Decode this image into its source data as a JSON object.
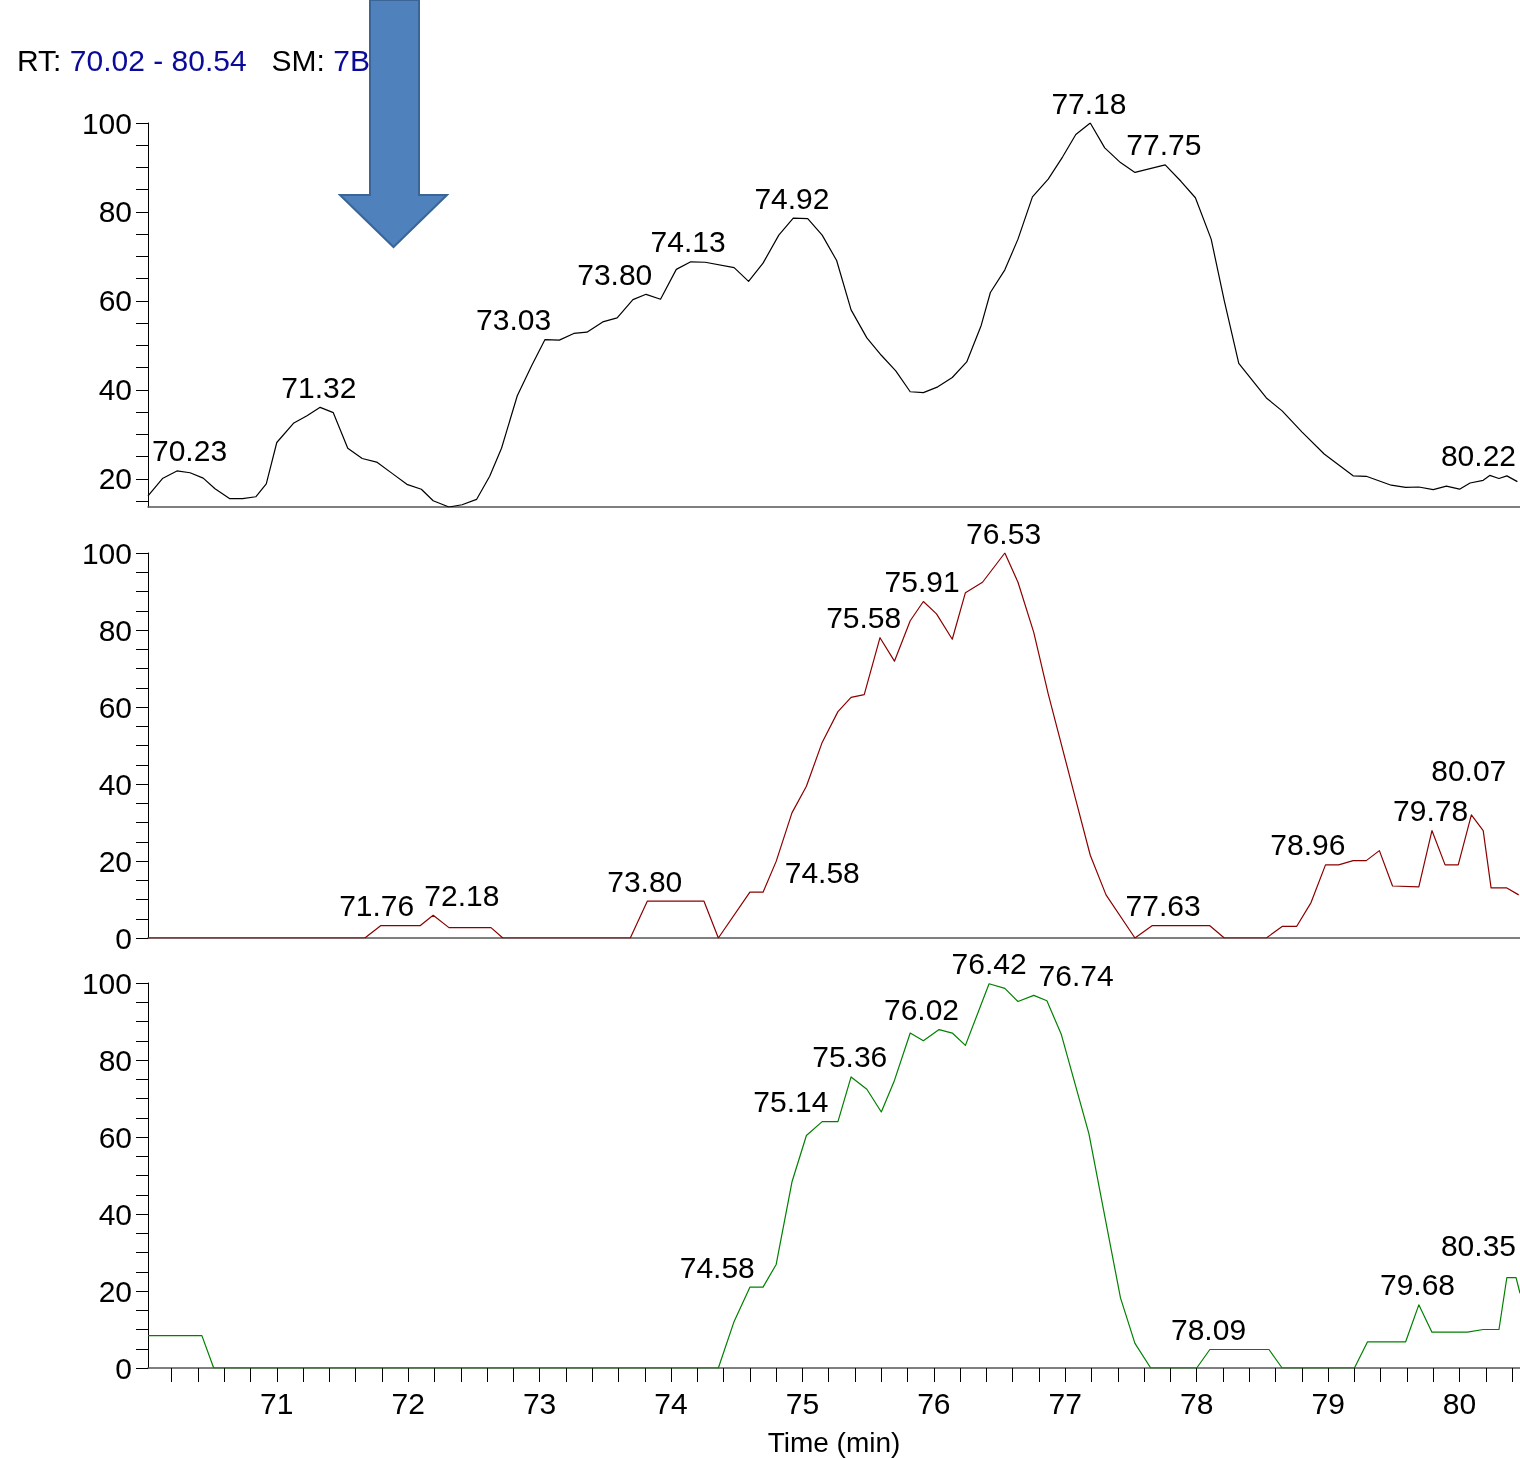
{
  "chart_data": [
    {
      "type": "line",
      "title": "RT: 70.02 - 80.54   SM: 7B",
      "xlim": [
        70.02,
        80.46
      ],
      "ylim": [
        13.7,
        100
      ],
      "tick_labels": "y",
      "yticks": [
        {
          "value": 15,
          "label": null
        },
        20,
        {
          "value": 25,
          "label": null
        },
        {
          "value": 30,
          "label": null
        },
        {
          "value": 35,
          "label": null
        },
        40,
        {
          "value": 45,
          "label": null
        },
        {
          "value": 50,
          "label": null
        },
        {
          "value": 55,
          "label": null
        },
        60,
        {
          "value": 65,
          "label": null
        },
        {
          "value": 70,
          "label": null
        },
        {
          "value": 75,
          "label": null
        },
        80,
        {
          "value": 85,
          "label": null
        },
        {
          "value": 90,
          "label": null
        },
        {
          "value": 95,
          "label": null
        },
        100
      ],
      "series": [
        {
          "color": "#000000",
          "x": [
            70.02,
            70.13,
            70.24,
            70.34,
            70.44,
            70.53,
            70.64,
            70.74,
            70.84,
            70.92,
            71.0,
            71.13,
            71.23,
            71.33,
            71.43,
            71.54,
            71.65,
            71.76,
            71.88,
            71.99,
            72.1,
            72.19,
            72.31,
            72.41,
            72.52,
            72.62,
            72.71,
            72.83,
            72.94,
            73.04,
            73.15,
            73.26,
            73.36,
            73.48,
            73.59,
            73.71,
            73.81,
            73.92,
            74.04,
            74.15,
            74.26,
            74.48,
            74.59,
            74.7,
            74.82,
            74.93,
            75.04,
            75.15,
            75.26,
            75.37,
            75.49,
            75.6,
            75.71,
            75.82,
            75.92,
            76.03,
            76.14,
            76.25,
            76.36,
            76.43,
            76.54,
            76.64,
            76.75,
            76.87,
            76.98,
            77.08,
            77.19,
            77.3,
            77.42,
            77.53,
            77.76,
            77.88,
            77.99,
            78.11,
            78.21,
            78.32,
            78.53,
            78.65,
            78.8,
            78.97,
            79.19,
            79.29,
            79.48,
            79.59,
            79.69,
            79.8,
            79.9,
            80.0,
            80.08,
            80.18,
            80.23,
            80.3,
            80.36,
            80.44
          ],
          "values": [
            16.2,
            20.1,
            21.8,
            21.4,
            20.2,
            17.8,
            15.6,
            15.6,
            16.0,
            18.9,
            28.2,
            32.6,
            34.2,
            36.1,
            34.9,
            26.9,
            24.6,
            23.8,
            21.2,
            18.8,
            17.7,
            15.1,
            13.7,
            14.2,
            15.4,
            20.6,
            26.9,
            38.7,
            45.5,
            51.3,
            51.2,
            52.7,
            53.0,
            55.3,
            56.2,
            60.3,
            61.5,
            60.4,
            67.1,
            68.8,
            68.7,
            67.5,
            64.4,
            68.5,
            74.8,
            78.6,
            78.5,
            74.8,
            69.1,
            58.0,
            51.7,
            47.8,
            44.3,
            39.6,
            39.4,
            40.7,
            42.8,
            46.3,
            54.5,
            61.9,
            67.0,
            73.9,
            83.4,
            87.4,
            92.4,
            97.4,
            100,
            94.4,
            91.1,
            88.9,
            90.6,
            86.9,
            83.2,
            73.9,
            60.0,
            46.0,
            38.2,
            35.3,
            30.6,
            25.6,
            20.7,
            20.6,
            18.6,
            18.1,
            18.2,
            17.6,
            18.4,
            17.7,
            19.1,
            19.7,
            20.8,
            20.1,
            20.7,
            19.4
          ]
        }
      ],
      "annotations": [
        {
          "text": "70.23",
          "x": 70.23,
          "y": 21.8
        },
        {
          "text": "71.32",
          "x": 71.32,
          "y": 36.1
        },
        {
          "text": "73.03",
          "x": 73.03,
          "y": 51.3
        },
        {
          "text": "73.80",
          "x": 73.8,
          "y": 61.5
        },
        {
          "text": "74.13",
          "x": 74.13,
          "y": 68.8
        },
        {
          "text": "74.92",
          "x": 74.92,
          "y": 78.6
        },
        {
          "text": "77.18",
          "x": 77.18,
          "y": 100
        },
        {
          "text": "77.75",
          "x": 77.75,
          "y": 90.6
        },
        {
          "text": "80.22",
          "x": 80.22,
          "y": 20.8
        }
      ]
    },
    {
      "type": "line",
      "xlim": [
        70.02,
        80.46
      ],
      "ylim": [
        0,
        100
      ],
      "tick_labels": "y",
      "yticks": [
        0,
        {
          "value": 5,
          "label": null
        },
        {
          "value": 10,
          "label": null
        },
        {
          "value": 15,
          "label": null
        },
        20,
        {
          "value": 25,
          "label": null
        },
        {
          "value": 30,
          "label": null
        },
        {
          "value": 35,
          "label": null
        },
        40,
        {
          "value": 45,
          "label": null
        },
        {
          "value": 50,
          "label": null
        },
        {
          "value": 55,
          "label": null
        },
        60,
        {
          "value": 65,
          "label": null
        },
        {
          "value": 70,
          "label": null
        },
        {
          "value": 75,
          "label": null
        },
        80,
        {
          "value": 85,
          "label": null
        },
        {
          "value": 90,
          "label": null
        },
        {
          "value": 95,
          "label": null
        },
        100
      ],
      "series": [
        {
          "color": "#8b0000",
          "x": [
            70.02,
            71.67,
            71.79,
            72.09,
            72.19,
            72.31,
            72.63,
            72.72,
            73.69,
            73.82,
            74.25,
            74.36,
            74.6,
            74.7,
            74.8,
            74.92,
            75.03,
            75.15,
            75.27,
            75.37,
            75.47,
            75.59,
            75.7,
            75.82,
            75.92,
            76.02,
            76.14,
            76.24,
            76.37,
            76.54,
            76.64,
            76.76,
            76.87,
            77.08,
            77.19,
            77.31,
            77.53,
            77.66,
            78.1,
            78.21,
            78.53,
            78.65,
            78.76,
            78.87,
            78.98,
            79.08,
            79.19,
            79.29,
            79.39,
            79.49,
            79.69,
            79.79,
            79.89,
            79.99,
            80.09,
            80.18,
            80.24,
            80.36,
            80.45
          ],
          "values": [
            0,
            0,
            3.2,
            3.2,
            5.9,
            2.7,
            2.7,
            0,
            0,
            9.6,
            9.6,
            0,
            11.9,
            11.9,
            19.9,
            32.5,
            39.4,
            50.8,
            58.8,
            62.5,
            63.2,
            78.0,
            71.9,
            82.4,
            87.4,
            84.2,
            77.6,
            89.7,
            92.4,
            100,
            92.4,
            79.4,
            63.4,
            35.9,
            21.5,
            11.2,
            0,
            3.2,
            3.2,
            0,
            0,
            3.0,
            3.0,
            9.2,
            19.0,
            19.0,
            20.1,
            20.1,
            22.7,
            13.5,
            13.3,
            27.9,
            19.0,
            19.0,
            32.0,
            27.9,
            13.0,
            13.0,
            11.2
          ]
        }
      ],
      "annotations": [
        {
          "text": "71.76",
          "x": 71.76,
          "y": 3.2
        },
        {
          "text": "72.18",
          "x": 72.18,
          "y": 5.9
        },
        {
          "text": "73.80",
          "x": 73.8,
          "y": 9.6
        },
        {
          "text": "74.58",
          "x": 74.58,
          "y": 11.9
        },
        {
          "text": "75.58",
          "x": 75.58,
          "y": 78.0
        },
        {
          "text": "75.91",
          "x": 75.91,
          "y": 87.4
        },
        {
          "text": "76.53",
          "x": 76.53,
          "y": 100
        },
        {
          "text": "77.63",
          "x": 77.63,
          "y": 3.2
        },
        {
          "text": "78.96",
          "x": 78.96,
          "y": 19.0
        },
        {
          "text": "79.78",
          "x": 79.78,
          "y": 27.9
        },
        {
          "text": "80.07",
          "x": 80.07,
          "y": 32.0
        }
      ]
    },
    {
      "type": "line",
      "xlabel": "Time (min)",
      "xlim": [
        70.02,
        80.46
      ],
      "ylim": [
        0,
        100
      ],
      "xticks": [
        {
          "value": 70.2,
          "label": null
        },
        {
          "value": 70.4,
          "label": null
        },
        {
          "value": 70.6,
          "label": null
        },
        {
          "value": 70.8,
          "label": null
        },
        71,
        {
          "value": 71.2,
          "label": null
        },
        {
          "value": 71.4,
          "label": null
        },
        {
          "value": 71.6,
          "label": null
        },
        {
          "value": 71.8,
          "label": null
        },
        72,
        {
          "value": 72.2,
          "label": null
        },
        {
          "value": 72.4,
          "label": null
        },
        {
          "value": 72.6,
          "label": null
        },
        {
          "value": 72.8,
          "label": null
        },
        73,
        {
          "value": 73.2,
          "label": null
        },
        {
          "value": 73.4,
          "label": null
        },
        {
          "value": 73.6,
          "label": null
        },
        {
          "value": 73.8,
          "label": null
        },
        74,
        {
          "value": 74.2,
          "label": null
        },
        {
          "value": 74.4,
          "label": null
        },
        {
          "value": 74.6,
          "label": null
        },
        {
          "value": 74.8,
          "label": null
        },
        75,
        {
          "value": 75.2,
          "label": null
        },
        {
          "value": 75.4,
          "label": null
        },
        {
          "value": 75.6,
          "label": null
        },
        {
          "value": 75.8,
          "label": null
        },
        76,
        {
          "value": 76.2,
          "label": null
        },
        {
          "value": 76.4,
          "label": null
        },
        {
          "value": 76.6,
          "label": null
        },
        {
          "value": 76.8,
          "label": null
        },
        77,
        {
          "value": 77.2,
          "label": null
        },
        {
          "value": 77.4,
          "label": null
        },
        {
          "value": 77.6,
          "label": null
        },
        {
          "value": 77.8,
          "label": null
        },
        78,
        {
          "value": 78.2,
          "label": null
        },
        {
          "value": 78.4,
          "label": null
        },
        {
          "value": 78.6,
          "label": null
        },
        {
          "value": 78.8,
          "label": null
        },
        79,
        {
          "value": 79.2,
          "label": null
        },
        {
          "value": 79.4,
          "label": null
        },
        {
          "value": 79.6,
          "label": null
        },
        {
          "value": 79.8,
          "label": null
        },
        80,
        {
          "value": 80.2,
          "label": null
        },
        {
          "value": 80.4,
          "label": null
        }
      ],
      "yticks": [
        0,
        {
          "value": 5,
          "label": null
        },
        {
          "value": 10,
          "label": null
        },
        {
          "value": 15,
          "label": null
        },
        20,
        {
          "value": 25,
          "label": null
        },
        {
          "value": 30,
          "label": null
        },
        {
          "value": 35,
          "label": null
        },
        40,
        {
          "value": 45,
          "label": null
        },
        {
          "value": 50,
          "label": null
        },
        {
          "value": 55,
          "label": null
        },
        60,
        {
          "value": 65,
          "label": null
        },
        {
          "value": 70,
          "label": null
        },
        {
          "value": 75,
          "label": null
        },
        80,
        {
          "value": 85,
          "label": null
        },
        {
          "value": 90,
          "label": null
        },
        {
          "value": 95,
          "label": null
        },
        100
      ],
      "series": [
        {
          "color": "#008000",
          "x": [
            70.02,
            70.43,
            70.52,
            74.36,
            74.48,
            74.6,
            74.7,
            74.8,
            74.92,
            75.03,
            75.15,
            75.27,
            75.37,
            75.49,
            75.6,
            75.7,
            75.82,
            75.92,
            76.04,
            76.14,
            76.24,
            76.42,
            76.54,
            76.64,
            76.76,
            76.86,
            76.97,
            77.18,
            77.42,
            77.53,
            77.65,
            78.0,
            78.1,
            78.55,
            78.65,
            79.2,
            79.3,
            79.59,
            79.69,
            79.79,
            80.06,
            80.18,
            80.3,
            80.36,
            80.43,
            80.46
          ],
          "values": [
            8.4,
            8.4,
            0,
            0,
            12.1,
            21.0,
            21.0,
            26.9,
            48.3,
            60.4,
            64.0,
            64.0,
            75.6,
            72.4,
            66.5,
            74.7,
            87.0,
            85.0,
            87.9,
            87.0,
            83.8,
            99.8,
            98.6,
            95.2,
            96.8,
            95.4,
            86.6,
            60.8,
            18.2,
            6.4,
            0,
            0,
            4.8,
            4.8,
            0,
            0,
            6.8,
            6.8,
            16.4,
            9.3,
            9.3,
            10.0,
            10.0,
            23.5,
            23.5,
            19.4
          ]
        }
      ],
      "annotations": [
        {
          "text": "74.58",
          "x": 74.58,
          "y": 21.0
        },
        {
          "text": "75.14",
          "x": 75.14,
          "y": 64.0
        },
        {
          "text": "75.36",
          "x": 75.36,
          "y": 75.6
        },
        {
          "text": "76.02",
          "x": 76.02,
          "y": 87.9
        },
        {
          "text": "76.42",
          "x": 76.42,
          "y": 99.8
        },
        {
          "text": "76.74",
          "x": 76.74,
          "y": 96.8
        },
        {
          "text": "78.09",
          "x": 78.09,
          "y": 4.8
        },
        {
          "text": "79.68",
          "x": 79.68,
          "y": 16.4
        },
        {
          "text": "80.35",
          "x": 80.35,
          "y": 23.5
        }
      ]
    }
  ]
}
